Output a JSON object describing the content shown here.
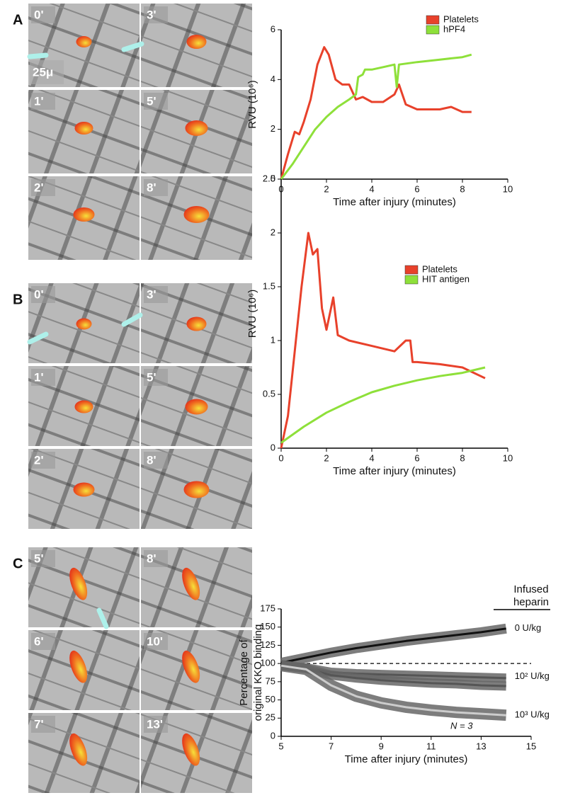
{
  "panels": [
    {
      "label": "A",
      "frames": [
        "0'",
        "3'",
        "1'",
        "5'",
        "2'",
        "8'"
      ],
      "scale": "25μ"
    },
    {
      "label": "B",
      "frames": [
        "0'",
        "3'",
        "1'",
        "5'",
        "2'",
        "8'"
      ]
    },
    {
      "label": "C",
      "frames": [
        "5'",
        "8'",
        "6'",
        "10'",
        "7'",
        "13'"
      ]
    }
  ],
  "chart_data": [
    {
      "type": "line",
      "x_label": "Time after injury (minutes)",
      "y_label": [
        "RVU (10⁶)"
      ],
      "xlim": [
        0,
        10
      ],
      "ylim": [
        0,
        6
      ],
      "xticks": [
        0,
        2,
        4,
        6,
        8,
        10
      ],
      "yticks": [
        0,
        2,
        4,
        6
      ],
      "legend": "upper right",
      "series": [
        {
          "name": "Platelets",
          "color": "#e8412b",
          "x": [
            0,
            0.3,
            0.6,
            0.8,
            1.0,
            1.3,
            1.6,
            1.9,
            2.1,
            2.4,
            2.7,
            3.0,
            3.3,
            3.6,
            4.0,
            4.5,
            5.0,
            5.2,
            5.5,
            6.0,
            7.0,
            7.5,
            8.0,
            8.4
          ],
          "values": [
            0,
            1,
            1.9,
            1.8,
            2.3,
            3.2,
            4.6,
            5.3,
            5.0,
            4.0,
            3.8,
            3.8,
            3.2,
            3.3,
            3.1,
            3.1,
            3.4,
            3.8,
            3.0,
            2.8,
            2.8,
            2.9,
            2.7,
            2.7
          ]
        },
        {
          "name": "hPF4",
          "color": "#8ee03a",
          "x": [
            0,
            0.5,
            1,
            1.5,
            2,
            2.5,
            3,
            3.3,
            3.4,
            3.6,
            3.7,
            4,
            4.5,
            5,
            5.1,
            5.2,
            6,
            7,
            8,
            8.4
          ],
          "values": [
            0,
            0.6,
            1.3,
            2.0,
            2.5,
            2.9,
            3.2,
            3.4,
            4.1,
            4.2,
            4.4,
            4.4,
            4.5,
            4.6,
            3.7,
            4.6,
            4.7,
            4.8,
            4.9,
            5.0
          ]
        }
      ]
    },
    {
      "type": "line",
      "x_label": "Time after injury (minutes)",
      "y_label": [
        "RVU (10⁶)"
      ],
      "xlim": [
        0,
        10
      ],
      "ylim": [
        0,
        2.5
      ],
      "xticks": [
        0,
        2,
        4,
        6,
        8,
        10
      ],
      "yticks": [
        0,
        0.5,
        1,
        1.5,
        2,
        2.5
      ],
      "legend": "upper right",
      "series": [
        {
          "name": "Platelets",
          "color": "#e8412b",
          "x": [
            0,
            0.3,
            0.6,
            0.9,
            1.2,
            1.4,
            1.6,
            1.8,
            2.0,
            2.3,
            2.5,
            3,
            4,
            5,
            5.5,
            5.7,
            5.8,
            6,
            7,
            8,
            9
          ],
          "values": [
            0,
            0.3,
            0.9,
            1.5,
            2.0,
            1.8,
            1.85,
            1.3,
            1.1,
            1.4,
            1.05,
            1.0,
            0.95,
            0.9,
            1.0,
            1.0,
            0.8,
            0.8,
            0.78,
            0.75,
            0.65
          ]
        },
        {
          "name": "HIT antigen",
          "color": "#8ee03a",
          "x": [
            0,
            1,
            2,
            3,
            4,
            5,
            6,
            7,
            8,
            9
          ],
          "values": [
            0.05,
            0.2,
            0.33,
            0.43,
            0.52,
            0.58,
            0.63,
            0.67,
            0.7,
            0.75
          ]
        }
      ]
    },
    {
      "type": "line",
      "x_label": "Time after injury (minutes)",
      "y_label": [
        "Percentage of",
        "original KKO binding"
      ],
      "xlim": [
        5,
        15
      ],
      "ylim": [
        0,
        175
      ],
      "xticks": [
        5,
        7,
        9,
        11,
        13,
        15
      ],
      "yticks": [
        0,
        25,
        50,
        75,
        100,
        125,
        150,
        175
      ],
      "legend": "line end",
      "reference_line": 100,
      "annotations": [
        "Infused",
        "heparin",
        "N = 3"
      ],
      "series": [
        {
          "name": "0 U/kg",
          "color": "#111111",
          "x": [
            5,
            6,
            7,
            8,
            9,
            10,
            11,
            12,
            13,
            14
          ],
          "values": [
            101,
            108,
            115,
            121,
            126,
            131,
            135,
            139,
            143,
            148
          ]
        },
        {
          "name": "10² U/kg",
          "color": "#555555",
          "x": [
            5,
            6,
            7,
            8,
            9,
            10,
            11,
            12,
            13,
            14
          ],
          "values": [
            97,
            94,
            88,
            86,
            85,
            84,
            83,
            82,
            81,
            80
          ]
        },
        {
          "name": null,
          "color": "#555555",
          "x": [
            5,
            6,
            7,
            8,
            9,
            10,
            11,
            12,
            13,
            14
          ],
          "values": [
            97,
            93,
            84,
            80,
            77,
            75,
            73,
            72,
            70,
            69
          ]
        },
        {
          "name": "10³ U/kg",
          "color": "#cccccc",
          "x": [
            5,
            6,
            7,
            8,
            9,
            10,
            11,
            12,
            13,
            14
          ],
          "values": [
            97,
            92,
            70,
            55,
            46,
            40,
            36,
            33,
            31,
            29
          ]
        }
      ]
    }
  ]
}
